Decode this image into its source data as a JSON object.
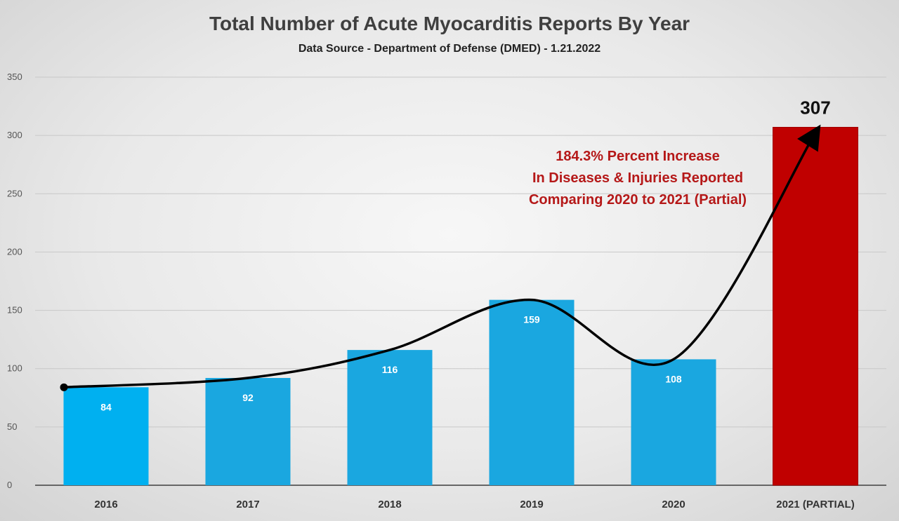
{
  "chart_data": {
    "type": "bar",
    "title": "Total Number of Acute Myocarditis Reports By Year",
    "subtitle": "Data Source - Department of Defense (DMED) - 1.21.2022",
    "categories": [
      "2016",
      "2017",
      "2018",
      "2019",
      "2020",
      "2021 (PARTIAL)"
    ],
    "values": [
      84,
      92,
      116,
      159,
      108,
      307
    ],
    "value_labels": [
      "84",
      "92",
      "116",
      "159",
      "108",
      "307"
    ],
    "ylim": [
      0,
      350
    ],
    "yticks": [
      0,
      50,
      100,
      150,
      200,
      250,
      300,
      350
    ],
    "ytick_labels": [
      "0",
      "50",
      "100",
      "150",
      "200",
      "250",
      "300",
      "350"
    ],
    "grid": true,
    "bar_colors": [
      "#00b0f0",
      "#1aa7e0",
      "#1aa7e0",
      "#1aa7e0",
      "#1aa7e0",
      "#c00000"
    ],
    "trend_line_color": "#000000",
    "annotation": {
      "lines": [
        "184.3% Percent Increase",
        "In Diseases & Injuries Reported",
        "Comparing 2020 to 2021 (Partial)"
      ],
      "color": "#b51818"
    }
  }
}
